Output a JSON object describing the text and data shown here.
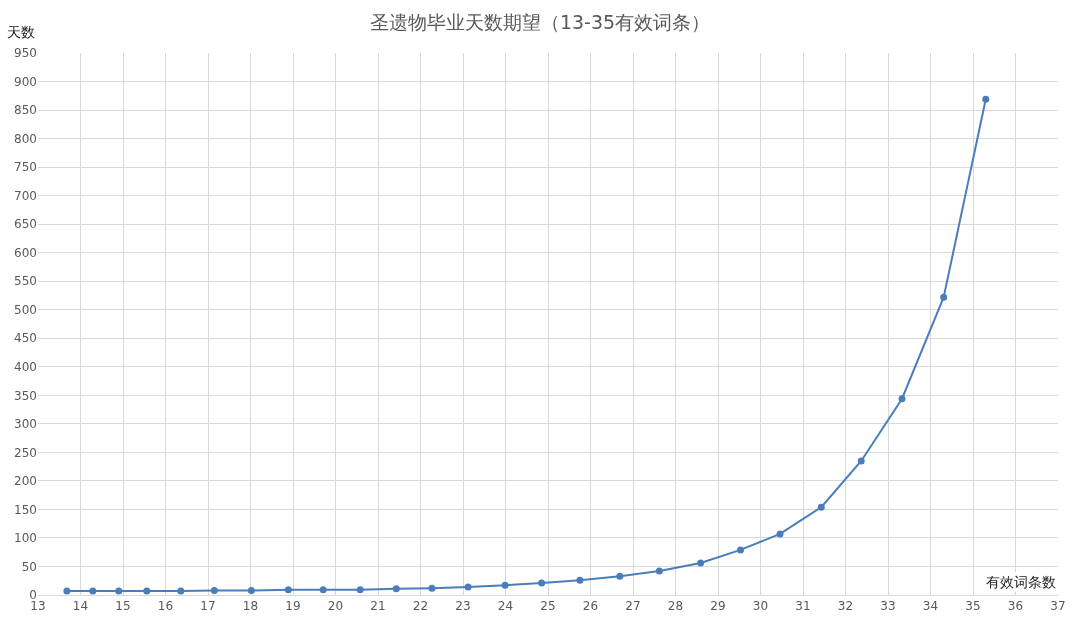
{
  "chart_data": {
    "type": "line",
    "title": "圣遗物毕业天数期望（13-35有效词条）",
    "xlabel": "有效词条数",
    "ylabel": "天数",
    "x": [
      13.68,
      14.29,
      14.9,
      15.56,
      16.36,
      17.15,
      18.02,
      18.89,
      19.71,
      20.58,
      21.43,
      22.27,
      23.12,
      23.99,
      24.85,
      25.75,
      26.69,
      27.62,
      28.59,
      29.53,
      30.46,
      31.43,
      32.37,
      33.33,
      34.31,
      35.3
    ],
    "series": [
      {
        "color": "#4a7ebb",
        "values": [
          7,
          7,
          7,
          7,
          7,
          8,
          8,
          9,
          9,
          9,
          11,
          12,
          14,
          17,
          21,
          26,
          33,
          42,
          56,
          79,
          107,
          154,
          235,
          344,
          522,
          869
        ]
      }
    ],
    "xlim": [
      13,
      37
    ],
    "xticks": [
      13,
      14,
      15,
      16,
      17,
      18,
      19,
      20,
      21,
      22,
      23,
      24,
      25,
      26,
      27,
      28,
      29,
      30,
      31,
      32,
      33,
      34,
      35,
      36,
      37
    ],
    "ylim": [
      0,
      950
    ],
    "yticks": [
      0,
      50,
      100,
      150,
      200,
      250,
      300,
      350,
      400,
      450,
      500,
      550,
      600,
      650,
      700,
      750,
      800,
      850,
      900,
      950
    ],
    "grid": true,
    "marker": "circle",
    "line_style": "solid"
  }
}
